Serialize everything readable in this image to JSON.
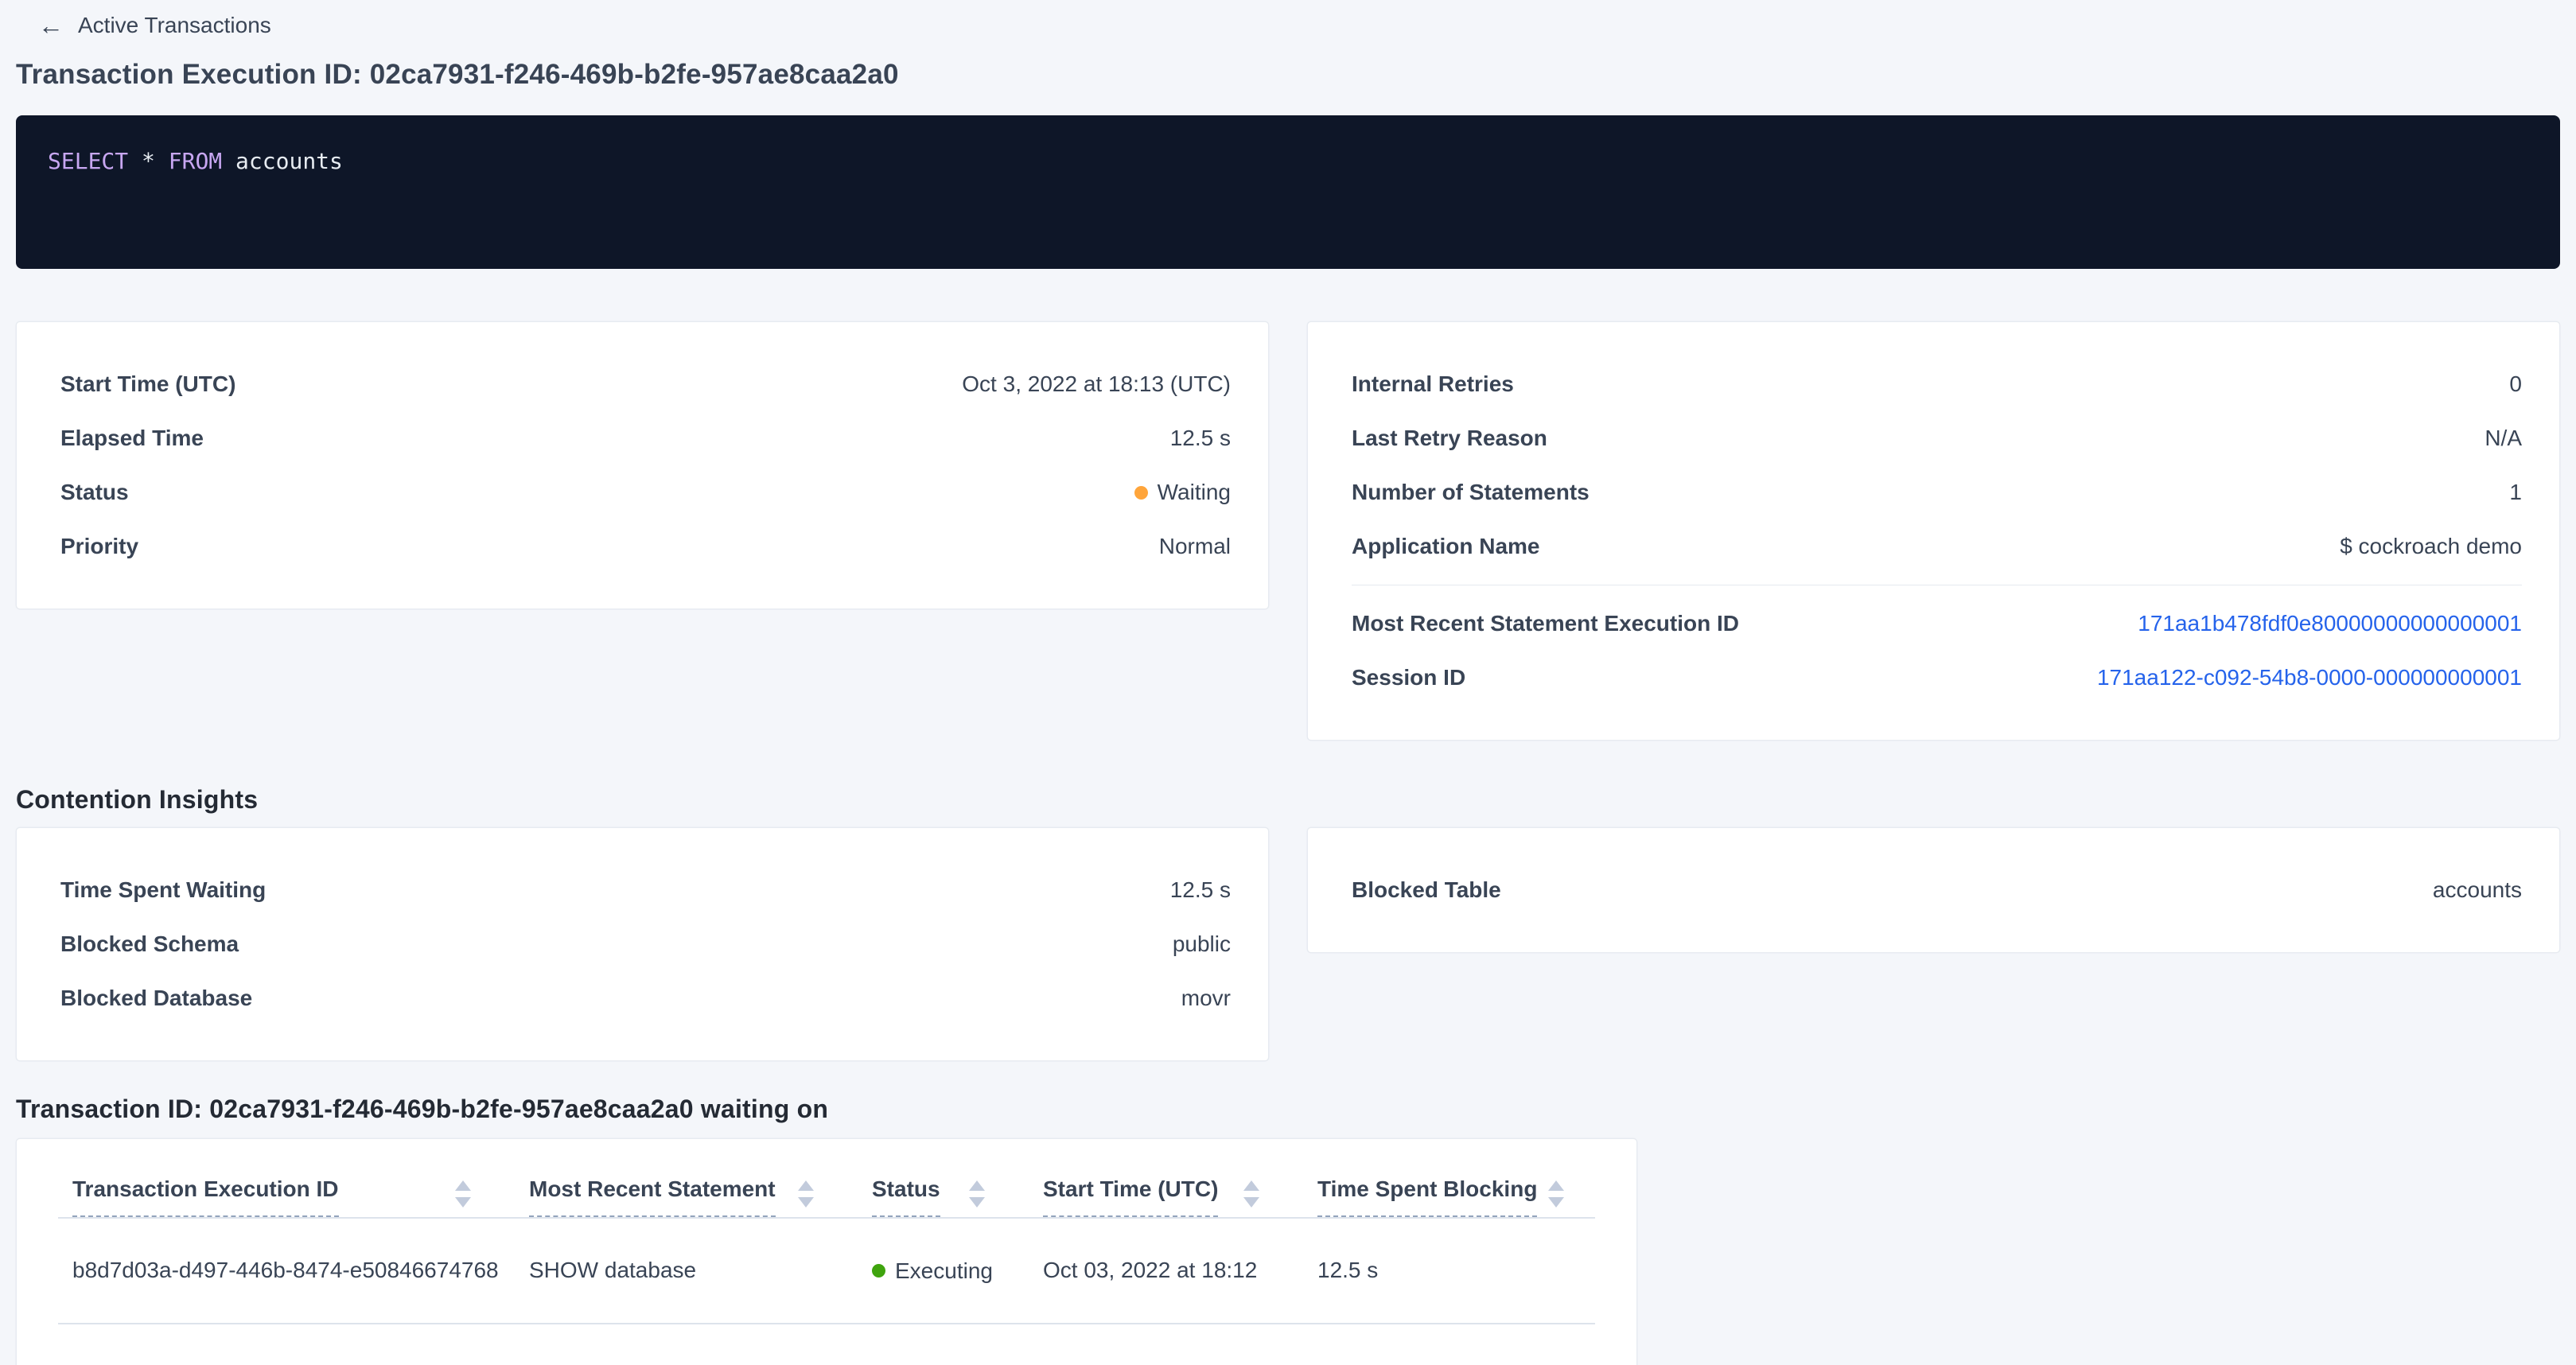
{
  "header": {
    "back_label": "Active Transactions",
    "title": "Transaction Execution ID: 02ca7931-f246-469b-b2fe-957ae8caa2a0"
  },
  "sql_box": {
    "tokens": {
      "kw1": "SELECT",
      "star": "*",
      "kw2": "FROM",
      "ident": "accounts"
    },
    "colors": {
      "background": "#0e1628",
      "keyword": "#c8a7f2",
      "text": "#e7ecf2"
    }
  },
  "summary_card": {
    "rows": [
      {
        "label": "Start Time (UTC)",
        "value": "Oct 3, 2022 at 18:13 (UTC)"
      },
      {
        "label": "Elapsed Time",
        "value": "12.5 s"
      },
      {
        "label": "Status",
        "value": "Waiting"
      },
      {
        "label": "Priority",
        "value": "Normal"
      }
    ],
    "status_dot_color": "#ffa53b"
  },
  "stats_card": {
    "rows": [
      {
        "label": "Internal Retries",
        "value": "0"
      },
      {
        "label": "Last Retry Reason",
        "value": "N/A"
      },
      {
        "label": "Number of Statements",
        "value": "1"
      },
      {
        "label": "Application Name",
        "value": "$ cockroach demo"
      }
    ],
    "links": [
      {
        "label": "Most Recent Statement Execution ID",
        "value": "171aa1b478fdf0e80000000000000001"
      },
      {
        "label": "Session ID",
        "value": "171aa122-c092-54b8-0000-000000000001"
      }
    ],
    "link_color": "#2563eb"
  },
  "contention": {
    "heading": "Contention Insights",
    "waiting_card": {
      "rows": [
        {
          "label": "Time Spent Waiting",
          "value": "12.5 s"
        },
        {
          "label": "Blocked Schema",
          "value": "public"
        },
        {
          "label": "Blocked Database",
          "value": "movr"
        }
      ]
    },
    "blocked_card": {
      "rows": [
        {
          "label": "Blocked Table",
          "value": "accounts"
        }
      ]
    }
  },
  "waiting_on": {
    "heading": "Transaction ID: 02ca7931-f246-469b-b2fe-957ae8caa2a0 waiting on",
    "table": {
      "columns": [
        "Transaction Execution ID",
        "Most Recent Statement",
        "Status",
        "Start Time (UTC)",
        "Time Spent Blocking"
      ],
      "rows": [
        {
          "transaction_execution_id": "b8d7d03a-d497-446b-8474-e50846674768",
          "most_recent_statement": "SHOW database",
          "status": "Executing",
          "start_time": "Oct 03, 2022 at 18:12",
          "time_spent_blocking": "12.5 s"
        }
      ],
      "status_dot_color": "#3fa40e"
    }
  }
}
